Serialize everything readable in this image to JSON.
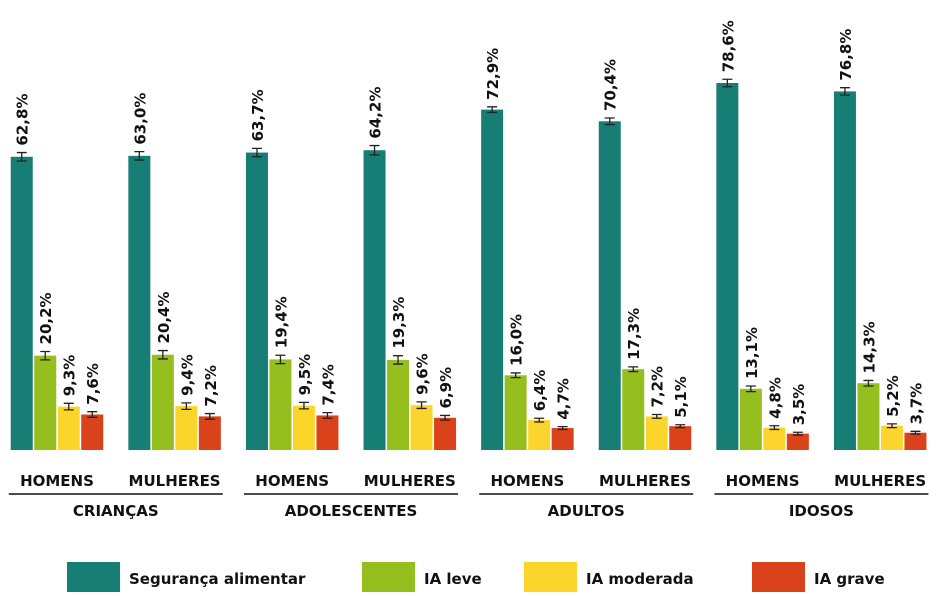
{
  "chart_data": {
    "type": "bar",
    "categories": [
      "HOMENS",
      "MULHERES",
      "HOMENS",
      "MULHERES",
      "HOMENS",
      "MULHERES",
      "HOMENS",
      "MULHERES"
    ],
    "groups": [
      "CRIANÇAS",
      "ADOLESCENTES",
      "ADULTOS",
      "IDOSOS"
    ],
    "series": [
      {
        "name": "Segurança alimentar",
        "color": "#167e74",
        "values": [
          62.8,
          63.0,
          63.7,
          64.2,
          72.9,
          70.4,
          78.6,
          76.8
        ],
        "value_labels": [
          "62,8%",
          "63,0%",
          "63,7%",
          "64,2%",
          "72,9%",
          "70,4%",
          "78,6%",
          "76,8%"
        ],
        "errors": [
          0.9,
          0.9,
          0.9,
          1.0,
          0.6,
          0.7,
          0.8,
          0.8
        ]
      },
      {
        "name": "IA leve",
        "color": "#95bf1f",
        "values": [
          20.2,
          20.4,
          19.4,
          19.3,
          16.0,
          17.3,
          13.1,
          14.3
        ],
        "value_labels": [
          "20,2%",
          "20,4%",
          "19,4%",
          "19,3%",
          "16,0%",
          "17,3%",
          "13,1%",
          "14,3%"
        ],
        "errors": [
          0.9,
          0.9,
          0.9,
          0.9,
          0.5,
          0.5,
          0.6,
          0.6
        ]
      },
      {
        "name": "IA moderada",
        "color": "#fcd52c",
        "values": [
          9.3,
          9.4,
          9.5,
          9.6,
          6.4,
          7.2,
          4.8,
          5.2
        ],
        "value_labels": [
          "9,3%",
          "9,4%",
          "9,5%",
          "9,6%",
          "6,4%",
          "7,2%",
          "4,8%",
          "5,2%"
        ],
        "errors": [
          0.7,
          0.7,
          0.7,
          0.7,
          0.4,
          0.4,
          0.4,
          0.4
        ]
      },
      {
        "name": "IA grave",
        "color": "#d9421a",
        "values": [
          7.6,
          7.2,
          7.4,
          6.9,
          4.7,
          5.1,
          3.5,
          3.7
        ],
        "value_labels": [
          "7,6%",
          "7,2%",
          "7,4%",
          "6,9%",
          "4,7%",
          "5,1%",
          "3,5%",
          "3,7%"
        ],
        "errors": [
          0.6,
          0.6,
          0.6,
          0.5,
          0.3,
          0.3,
          0.3,
          0.3
        ]
      }
    ]
  }
}
